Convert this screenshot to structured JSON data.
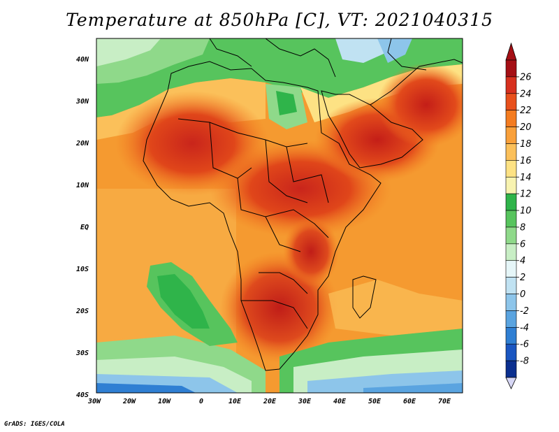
{
  "title": "Temperature at 850hPa [C], VT: 2021040315",
  "footer": "GrADS: IGES/COLA",
  "map": {
    "region": "Africa",
    "variable": "Temperature at 850hPa",
    "units": "C",
    "valid_time": "2021040315",
    "lon_range": [
      -30,
      75
    ],
    "lat_range": [
      -40,
      45
    ],
    "lat_ticks": [
      "40N",
      "30N",
      "20N",
      "10N",
      "EQ",
      "10S",
      "20S",
      "30S",
      "40S"
    ],
    "lon_ticks": [
      "30W",
      "20W",
      "10W",
      "0",
      "10E",
      "20E",
      "30E",
      "40E",
      "50E",
      "60E",
      "70E"
    ]
  },
  "colorbar": {
    "labels": [
      "26",
      "24",
      "22",
      "20",
      "18",
      "16",
      "14",
      "12",
      "10",
      "8",
      "6",
      "4",
      "2",
      "0",
      "-2",
      "-4",
      "-6",
      "-8"
    ],
    "colors": [
      "#a50f15",
      "#d7301f",
      "#e8501c",
      "#f47c20",
      "#f9a03a",
      "#fbc05a",
      "#fde284",
      "#f8f3b0",
      "#2fb44a",
      "#57c45d",
      "#8fd98a",
      "#c8eec5",
      "#e6f6f8",
      "#c0e2f2",
      "#8dc5ea",
      "#5aa4e0",
      "#2f7fd3",
      "#1a56c1",
      "#0b2f8f"
    ],
    "upper_arrow_color": "#a50f15",
    "lower_arrow_color": "#d7d7f5"
  }
}
